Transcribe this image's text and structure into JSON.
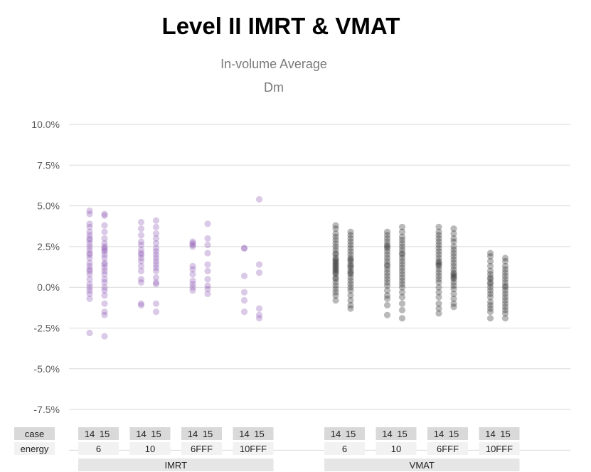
{
  "chart_data": {
    "type": "scatter",
    "title": "Level II IMRT & VMAT",
    "subtitle_lines": [
      "In-volume Average",
      "Dm"
    ],
    "ylabel": "",
    "ylim": [
      -0.1,
      0.1
    ],
    "yticks": [
      "10.0%",
      "7.5%",
      "5.0%",
      "2.5%",
      "0.0%",
      "-2.5%",
      "-5.0%",
      "-7.5%"
    ],
    "grid": true,
    "row_headers": [
      "case",
      "energy"
    ],
    "groups": [
      {
        "name": "IMRT",
        "color": "#8e5bb5",
        "energies": [
          {
            "label": "6",
            "cases": [
              {
                "case": "14",
                "values": [
                  4.7,
                  4.5,
                  3.9,
                  3.7,
                  3.4,
                  3.2,
                  3.0,
                  2.9,
                  2.7,
                  2.5,
                  2.3,
                  2.1,
                  2.0,
                  1.8,
                  1.5,
                  1.3,
                  1.1,
                  1.0,
                  0.8,
                  0.5,
                  0.2,
                  0.0,
                  -0.2,
                  -0.4,
                  -0.7,
                  -2.8
                ]
              },
              {
                "case": "15",
                "values": [
                  4.5,
                  4.4,
                  3.8,
                  3.4,
                  3.0,
                  2.7,
                  2.5,
                  2.4,
                  2.3,
                  2.2,
                  2.0,
                  1.8,
                  1.5,
                  1.4,
                  1.2,
                  1.0,
                  0.8,
                  0.5,
                  0.3,
                  0.0,
                  -0.2,
                  -0.5,
                  -1.0,
                  -1.5,
                  -1.7,
                  -3.0
                ]
              }
            ]
          },
          {
            "label": "10",
            "cases": [
              {
                "case": "14",
                "values": [
                  4.0,
                  3.6,
                  3.2,
                  2.8,
                  2.6,
                  2.3,
                  2.1,
                  2.0,
                  1.8,
                  1.6,
                  1.3,
                  1.0,
                  0.5,
                  0.3,
                  -1.0,
                  -1.1
                ]
              },
              {
                "case": "15",
                "values": [
                  4.1,
                  3.7,
                  3.3,
                  3.0,
                  2.7,
                  2.4,
                  2.2,
                  2.0,
                  1.8,
                  1.6,
                  1.4,
                  1.2,
                  1.0,
                  0.6,
                  0.3,
                  0.2,
                  -1.0,
                  -1.5
                ]
              }
            ]
          },
          {
            "label": "6FFF",
            "cases": [
              {
                "case": "14",
                "values": [
                  2.8,
                  2.7,
                  2.6,
                  2.5,
                  1.3,
                  1.1,
                  0.8,
                  0.4,
                  0.2,
                  0.0,
                  -0.2
                ]
              },
              {
                "case": "15",
                "values": [
                  3.9,
                  3.0,
                  2.6,
                  2.1,
                  1.4,
                  1.0,
                  0.5,
                  0.1,
                  -0.1,
                  -0.4
                ]
              }
            ]
          },
          {
            "label": "10FFF",
            "cases": [
              {
                "case": "14",
                "values": [
                  2.4,
                  2.4,
                  0.7,
                  -0.3,
                  -0.8,
                  -1.5
                ]
              },
              {
                "case": "15",
                "values": [
                  5.4,
                  1.4,
                  0.9,
                  -1.3,
                  -1.7,
                  -1.9
                ]
              }
            ]
          }
        ]
      },
      {
        "name": "VMAT",
        "color": "#262626",
        "energies": [
          {
            "label": "6",
            "cases": [
              {
                "case": "14",
                "values": [
                  3.8,
                  3.6,
                  3.3,
                  3.1,
                  2.9,
                  2.7,
                  2.5,
                  2.3,
                  2.1,
                  2.0,
                  1.8,
                  1.7,
                  1.6,
                  1.5,
                  1.4,
                  1.3,
                  1.2,
                  1.1,
                  1.0,
                  0.9,
                  0.8,
                  0.6,
                  0.5,
                  0.3,
                  0.1,
                  -0.1,
                  -0.3,
                  -0.5,
                  -0.8
                ]
              },
              {
                "case": "15",
                "values": [
                  3.4,
                  3.2,
                  3.0,
                  2.8,
                  2.6,
                  2.4,
                  2.2,
                  2.0,
                  1.8,
                  1.7,
                  1.6,
                  1.4,
                  1.3,
                  1.2,
                  1.0,
                  0.9,
                  0.8,
                  0.6,
                  0.4,
                  0.2,
                  0.0,
                  -0.2,
                  -0.5,
                  -0.8,
                  -1.1,
                  -1.3
                ]
              }
            ]
          },
          {
            "label": "10",
            "cases": [
              {
                "case": "14",
                "values": [
                  3.4,
                  3.2,
                  3.0,
                  2.8,
                  2.6,
                  2.5,
                  2.4,
                  2.2,
                  2.0,
                  1.8,
                  1.6,
                  1.4,
                  1.3,
                  1.1,
                  0.9,
                  0.7,
                  0.5,
                  0.3,
                  0.1,
                  -0.2,
                  -0.5,
                  -0.7,
                  -1.1,
                  -1.7
                ]
              },
              {
                "case": "15",
                "values": [
                  3.7,
                  3.4,
                  3.1,
                  2.9,
                  2.7,
                  2.5,
                  2.3,
                  2.1,
                  2.0,
                  1.8,
                  1.6,
                  1.4,
                  1.2,
                  1.0,
                  0.8,
                  0.6,
                  0.4,
                  0.2,
                  0.0,
                  -0.3,
                  -0.6,
                  -1.0,
                  -1.4,
                  -1.9
                ]
              }
            ]
          },
          {
            "label": "6FFF",
            "cases": [
              {
                "case": "14",
                "values": [
                  3.7,
                  3.4,
                  3.2,
                  3.0,
                  2.8,
                  2.6,
                  2.4,
                  2.2,
                  2.0,
                  1.8,
                  1.6,
                  1.5,
                  1.4,
                  1.3,
                  1.1,
                  0.9,
                  0.7,
                  0.5,
                  0.3,
                  0.0,
                  -0.3,
                  -0.6,
                  -1.0,
                  -1.3,
                  -1.6
                ]
              },
              {
                "case": "15",
                "values": [
                  3.6,
                  3.3,
                  3.0,
                  2.8,
                  2.5,
                  2.3,
                  2.1,
                  1.9,
                  1.7,
                  1.5,
                  1.3,
                  1.1,
                  0.9,
                  0.8,
                  0.7,
                  0.6,
                  0.5,
                  0.3,
                  0.1,
                  -0.1,
                  -0.4,
                  -0.7,
                  -1.0,
                  -1.2
                ]
              }
            ]
          },
          {
            "label": "10FFF",
            "cases": [
              {
                "case": "14",
                "values": [
                  2.1,
                  1.9,
                  1.6,
                  1.3,
                  1.0,
                  0.8,
                  0.6,
                  0.5,
                  0.3,
                  0.2,
                  0.0,
                  -0.2,
                  -0.4,
                  -0.6,
                  -0.9,
                  -1.1,
                  -1.3,
                  -1.5,
                  -1.9
                ]
              },
              {
                "case": "15",
                "values": [
                  1.8,
                  1.6,
                  1.3,
                  1.1,
                  0.9,
                  0.7,
                  0.5,
                  0.3,
                  0.1,
                  0.0,
                  -0.2,
                  -0.4,
                  -0.6,
                  -0.8,
                  -1.0,
                  -1.2,
                  -1.4,
                  -1.6,
                  -1.9
                ]
              }
            ]
          }
        ]
      }
    ]
  }
}
